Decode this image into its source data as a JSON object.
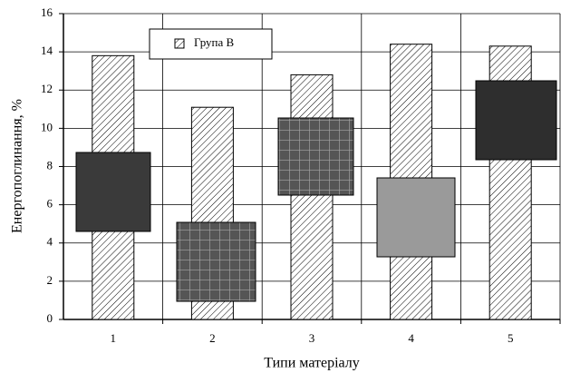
{
  "chart_data": {
    "type": "bar",
    "y_label": "Енергопоглинання, %",
    "x_label": "Типи матеріалу",
    "categories": [
      "1",
      "2",
      "3",
      "4",
      "5"
    ],
    "series": [
      {
        "name": "Група В",
        "color": "#000000",
        "values": [
          13.8,
          11.1,
          12.8,
          14.4,
          14.3
        ]
      }
    ],
    "ylim": [
      0,
      16
    ],
    "yticks": [
      0,
      2,
      4,
      6,
      8,
      10,
      12,
      14,
      16
    ],
    "grid": true
  }
}
